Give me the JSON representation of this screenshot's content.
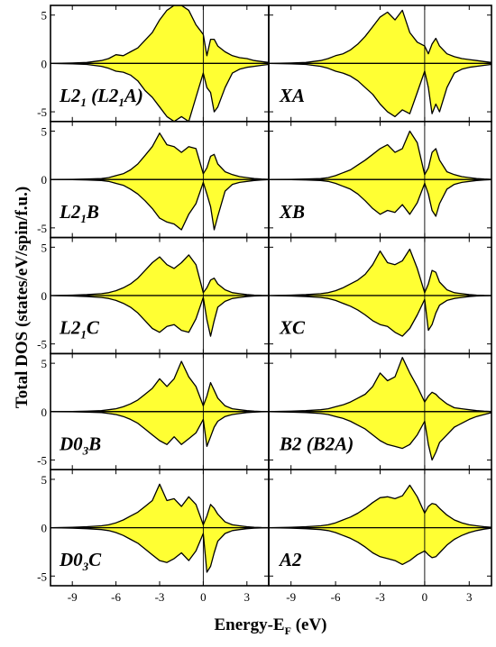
{
  "colors": {
    "fill": "#ffff33",
    "stroke": "#000000"
  },
  "chart_data": {
    "type": "area",
    "layout": {
      "rows": 5,
      "columns": 2
    },
    "xlabel": "Energy-E",
    "xlabel_sub": "F",
    "xlabel_unit": " (eV)",
    "ylabel": "Total DOS (states/eV/spin/f.u.)",
    "xlim": [
      -10.5,
      4.5
    ],
    "ylim": [
      -6,
      6
    ],
    "x_ticks": [
      -9,
      -6,
      -3,
      0,
      3
    ],
    "x_tick_labels": [
      "-9",
      "-6",
      "-3",
      "0",
      "3"
    ],
    "y_ticks": [
      -5,
      0,
      5
    ],
    "y_tick_labels": [
      "-5",
      "0",
      "5"
    ],
    "fermi_level": 0,
    "x": [
      -10.5,
      -9,
      -8,
      -7,
      -6.5,
      -6,
      -5.5,
      -5,
      -4.5,
      -4,
      -3.5,
      -3,
      -2.5,
      -2,
      -1.5,
      -1,
      -0.5,
      0,
      0.25,
      0.5,
      0.75,
      1,
      1.5,
      2,
      2.5,
      3,
      3.5,
      4,
      4.5
    ],
    "panels": [
      {
        "label": "L2",
        "label_sub": "1",
        "label_tail": " (L2",
        "label_sub2": "1",
        "label_end": "A)",
        "row": 0,
        "col": 0,
        "up": [
          0,
          0.05,
          0.1,
          0.3,
          0.5,
          0.9,
          0.8,
          1.2,
          1.6,
          2.4,
          3.2,
          4.5,
          5.5,
          6,
          6,
          5.5,
          4,
          3,
          0.8,
          2.5,
          2.5,
          1.8,
          1.2,
          0.8,
          0.6,
          0.5,
          0.3,
          0.2,
          0.1
        ],
        "down": [
          0,
          -0.05,
          -0.1,
          -0.3,
          -0.5,
          -0.8,
          -0.9,
          -1.2,
          -1.8,
          -2.8,
          -3.5,
          -4.5,
          -5.5,
          -6,
          -5.5,
          -6,
          -3.5,
          -1,
          -2.5,
          -3,
          -5,
          -4.5,
          -2.5,
          -1,
          -0.6,
          -0.4,
          -0.3,
          -0.2,
          -0.1
        ]
      },
      {
        "label": "XA",
        "row": 0,
        "col": 1,
        "up": [
          0,
          0.05,
          0.1,
          0.3,
          0.5,
          0.8,
          1,
          1.4,
          2,
          2.8,
          3.8,
          4.8,
          5.3,
          4.5,
          5.5,
          3.2,
          2.2,
          1.8,
          1,
          2,
          2.6,
          1.8,
          1,
          0.7,
          0.5,
          0.4,
          0.3,
          0.2,
          0.1
        ],
        "down": [
          0,
          -0.05,
          -0.1,
          -0.3,
          -0.5,
          -0.8,
          -1,
          -1.3,
          -1.8,
          -2.5,
          -3.2,
          -4.2,
          -5,
          -5.5,
          -4.8,
          -5.2,
          -3,
          -0.8,
          -2.5,
          -5.2,
          -4.2,
          -5,
          -2.5,
          -1,
          -0.6,
          -0.4,
          -0.3,
          -0.2,
          -0.1
        ]
      },
      {
        "label": "L2",
        "label_sub": "1",
        "label_end": "B",
        "row": 1,
        "col": 0,
        "up": [
          0,
          0.02,
          0.05,
          0.1,
          0.2,
          0.4,
          0.6,
          1,
          1.6,
          2.5,
          3.4,
          4.8,
          3.6,
          3.4,
          2.8,
          3.4,
          3.2,
          0.6,
          1.2,
          2.4,
          2.6,
          1.6,
          0.8,
          0.5,
          0.3,
          0.2,
          0.1,
          0.05,
          0.02
        ],
        "down": [
          0,
          -0.02,
          -0.05,
          -0.1,
          -0.2,
          -0.4,
          -0.6,
          -1,
          -1.5,
          -2.2,
          -3,
          -4,
          -4.4,
          -4.6,
          -5.2,
          -3.6,
          -2.5,
          -0.3,
          -1.5,
          -2.8,
          -5.2,
          -3.8,
          -1.2,
          -0.5,
          -0.3,
          -0.2,
          -0.1,
          -0.05,
          -0.02
        ]
      },
      {
        "label": "XB",
        "row": 1,
        "col": 1,
        "up": [
          0,
          0.02,
          0.05,
          0.1,
          0.2,
          0.4,
          0.7,
          1,
          1.5,
          2,
          2.6,
          3.2,
          3.6,
          2.8,
          3.2,
          5,
          3.8,
          0.5,
          1.2,
          2.8,
          3.2,
          2,
          0.8,
          0.5,
          0.3,
          0.2,
          0.1,
          0.05,
          0.02
        ],
        "down": [
          0,
          -0.02,
          -0.05,
          -0.1,
          -0.2,
          -0.4,
          -0.7,
          -1,
          -1.5,
          -2.2,
          -3,
          -3.6,
          -3.2,
          -3.4,
          -2.6,
          -3.6,
          -2.4,
          -0.4,
          -1.5,
          -3.2,
          -3.8,
          -2.5,
          -1,
          -0.5,
          -0.3,
          -0.2,
          -0.1,
          -0.05,
          -0.02
        ]
      },
      {
        "label": "L2",
        "label_sub": "1",
        "label_end": "C",
        "row": 2,
        "col": 0,
        "up": [
          0,
          0.05,
          0.1,
          0.2,
          0.3,
          0.5,
          0.8,
          1.2,
          1.8,
          2.6,
          3.4,
          4,
          3.2,
          2.8,
          3.4,
          4.2,
          3.2,
          0.3,
          0.8,
          1.6,
          1.8,
          1.2,
          0.6,
          0.3,
          0.2,
          0.1,
          0.05,
          0.02,
          0.01
        ],
        "down": [
          0,
          -0.05,
          -0.1,
          -0.2,
          -0.3,
          -0.5,
          -0.8,
          -1.2,
          -1.8,
          -2.6,
          -3.4,
          -3.8,
          -3.2,
          -3,
          -3.6,
          -3.8,
          -2.4,
          -0.2,
          -2.5,
          -4.2,
          -2.6,
          -1.2,
          -0.6,
          -0.3,
          -0.2,
          -0.1,
          -0.05,
          -0.02,
          -0.01
        ]
      },
      {
        "label": "XC",
        "row": 2,
        "col": 1,
        "up": [
          0,
          0.05,
          0.1,
          0.2,
          0.3,
          0.5,
          0.8,
          1.2,
          1.6,
          2.2,
          3.2,
          4.6,
          3.4,
          3.2,
          3.6,
          4.8,
          2.8,
          0.3,
          1.2,
          2.6,
          2.4,
          1.4,
          0.6,
          0.3,
          0.2,
          0.1,
          0.05,
          0.02,
          0.01
        ],
        "down": [
          0,
          -0.05,
          -0.1,
          -0.2,
          -0.3,
          -0.5,
          -0.8,
          -1.1,
          -1.5,
          -2,
          -2.6,
          -3,
          -3.2,
          -3.8,
          -4.2,
          -3.4,
          -2,
          -0.4,
          -3.6,
          -3,
          -1.8,
          -1,
          -0.5,
          -0.3,
          -0.2,
          -0.1,
          -0.05,
          -0.02,
          -0.01
        ]
      },
      {
        "label": "D0",
        "label_sub": "3",
        "label_end": "B",
        "row": 3,
        "col": 0,
        "up": [
          0,
          0.02,
          0.05,
          0.1,
          0.2,
          0.3,
          0.5,
          0.8,
          1.2,
          1.8,
          2.4,
          3.4,
          2.6,
          3.4,
          5.2,
          3.6,
          2.6,
          0.6,
          1.6,
          3,
          2.2,
          1.4,
          0.6,
          0.3,
          0.2,
          0.1,
          0.05,
          0.02,
          0.01
        ],
        "down": [
          0,
          -0.02,
          -0.05,
          -0.1,
          -0.2,
          -0.3,
          -0.5,
          -0.8,
          -1.2,
          -1.8,
          -2.4,
          -3,
          -3.4,
          -2.6,
          -3.4,
          -2.8,
          -2.2,
          -0.8,
          -3.6,
          -2.6,
          -1.6,
          -1,
          -0.5,
          -0.3,
          -0.2,
          -0.1,
          -0.05,
          -0.02,
          -0.01
        ]
      },
      {
        "label": "B2",
        "label_tail": " (B2A)",
        "row": 3,
        "col": 1,
        "up": [
          0,
          0.05,
          0.1,
          0.2,
          0.3,
          0.5,
          0.7,
          1,
          1.4,
          1.8,
          2.6,
          4,
          3.2,
          3.6,
          5.6,
          4,
          2.6,
          1,
          1.6,
          2,
          1.8,
          1.4,
          0.8,
          0.4,
          0.3,
          0.2,
          0.1,
          0.05,
          0.02
        ],
        "down": [
          0,
          -0.05,
          -0.1,
          -0.2,
          -0.3,
          -0.5,
          -0.7,
          -1,
          -1.4,
          -1.8,
          -2.4,
          -3,
          -3.4,
          -3.6,
          -3.8,
          -3.4,
          -2.4,
          -1,
          -3.4,
          -5,
          -4.2,
          -3.2,
          -2.4,
          -1.6,
          -1.2,
          -0.8,
          -0.5,
          -0.3,
          -0.1
        ]
      },
      {
        "label": "D0",
        "label_sub": "3",
        "label_end": "C",
        "row": 4,
        "col": 0,
        "up": [
          0,
          0.05,
          0.1,
          0.2,
          0.3,
          0.5,
          0.8,
          1.2,
          1.6,
          2.2,
          2.8,
          4.5,
          2.8,
          3,
          2.2,
          3.2,
          2.4,
          0.3,
          1.2,
          2.4,
          2,
          1.4,
          0.6,
          0.3,
          0.2,
          0.1,
          0.05,
          0.02,
          0.01
        ],
        "down": [
          0,
          -0.05,
          -0.1,
          -0.2,
          -0.3,
          -0.5,
          -0.8,
          -1.2,
          -1.6,
          -2.2,
          -2.8,
          -3.4,
          -3.6,
          -3.2,
          -2.6,
          -3.4,
          -2.4,
          -0.6,
          -4.6,
          -4,
          -2.6,
          -1.4,
          -0.6,
          -0.3,
          -0.2,
          -0.1,
          -0.05,
          -0.02,
          -0.01
        ]
      },
      {
        "label": "A2",
        "row": 4,
        "col": 1,
        "up": [
          0,
          0.05,
          0.1,
          0.2,
          0.3,
          0.5,
          0.8,
          1.1,
          1.5,
          2,
          2.6,
          3.1,
          3.2,
          3,
          3.3,
          4.4,
          3.2,
          1.5,
          2.2,
          2.5,
          2.4,
          2,
          1.3,
          0.8,
          0.5,
          0.3,
          0.2,
          0.1,
          0.05
        ],
        "down": [
          0,
          -0.05,
          -0.1,
          -0.2,
          -0.3,
          -0.5,
          -0.8,
          -1.1,
          -1.5,
          -2,
          -2.6,
          -3,
          -3.2,
          -3.4,
          -3.8,
          -3.4,
          -2.8,
          -2.4,
          -2.8,
          -3.1,
          -3,
          -2.6,
          -1.8,
          -1.2,
          -0.8,
          -0.5,
          -0.3,
          -0.15,
          -0.05
        ]
      }
    ]
  }
}
